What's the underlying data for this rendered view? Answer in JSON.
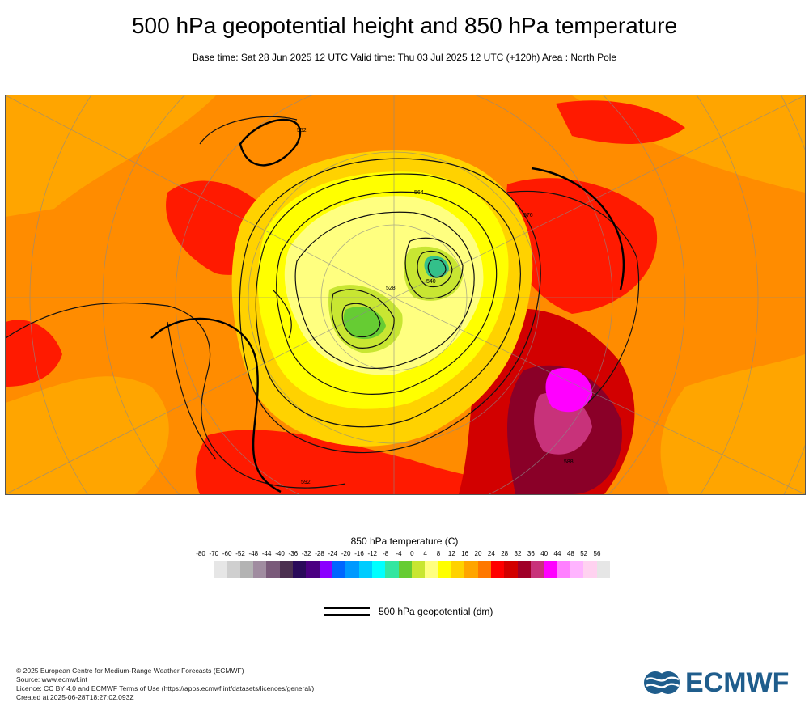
{
  "header": {
    "title": "500 hPa geopotential height and 850 hPa temperature",
    "subtitle": "Base time: Sat 28 Jun 2025 12 UTC Valid time: Thu 03 Jul 2025 12 UTC (+120h) Area : North Pole"
  },
  "map": {
    "contour_labels": [
      "552",
      "564",
      "576",
      "588",
      "592",
      "528",
      "540"
    ]
  },
  "colorbar": {
    "title": "850 hPa temperature (C)",
    "tick_labels": [
      "-80",
      "-70",
      "-60",
      "-52",
      "-48",
      "-44",
      "-40",
      "-36",
      "-32",
      "-28",
      "-24",
      "-20",
      "-16",
      "-12",
      "-8",
      "-4",
      "0",
      "4",
      "8",
      "12",
      "16",
      "20",
      "24",
      "28",
      "32",
      "36",
      "40",
      "44",
      "48",
      "52",
      "56"
    ],
    "colors": [
      "#e6e6e6",
      "#cfcfcf",
      "#b3b3b3",
      "#a08ca0",
      "#7a5a7a",
      "#4b3050",
      "#2a0a5a",
      "#4b0082",
      "#8a00ff",
      "#0066ff",
      "#0099ff",
      "#00ccff",
      "#00ffff",
      "#33e6a0",
      "#66cc33",
      "#c8e632",
      "#ffff80",
      "#ffff00",
      "#ffd200",
      "#ffa500",
      "#ff7800",
      "#ff0000",
      "#d20000",
      "#a00028",
      "#c8327a",
      "#ff00ff",
      "#ff80ff",
      "#ffb4ff",
      "#ffd2f0",
      "#e6e6e6"
    ]
  },
  "legend": {
    "geopotential_label": "500 hPa geopotential (dm)"
  },
  "credits": {
    "line1": "© 2025 European Centre for Medium-Range Weather Forecasts (ECMWF)",
    "line2": "Source: www.ecmwf.int",
    "line3": "Licence: CC BY 4.0 and ECMWF Terms of Use (https://apps.ecmwf.int/datasets/licences/general/)",
    "line4": "Created at 2025-06-28T18:27:02.093Z"
  },
  "logo": {
    "text": "ECMWF",
    "color": "#1f5d8c"
  }
}
